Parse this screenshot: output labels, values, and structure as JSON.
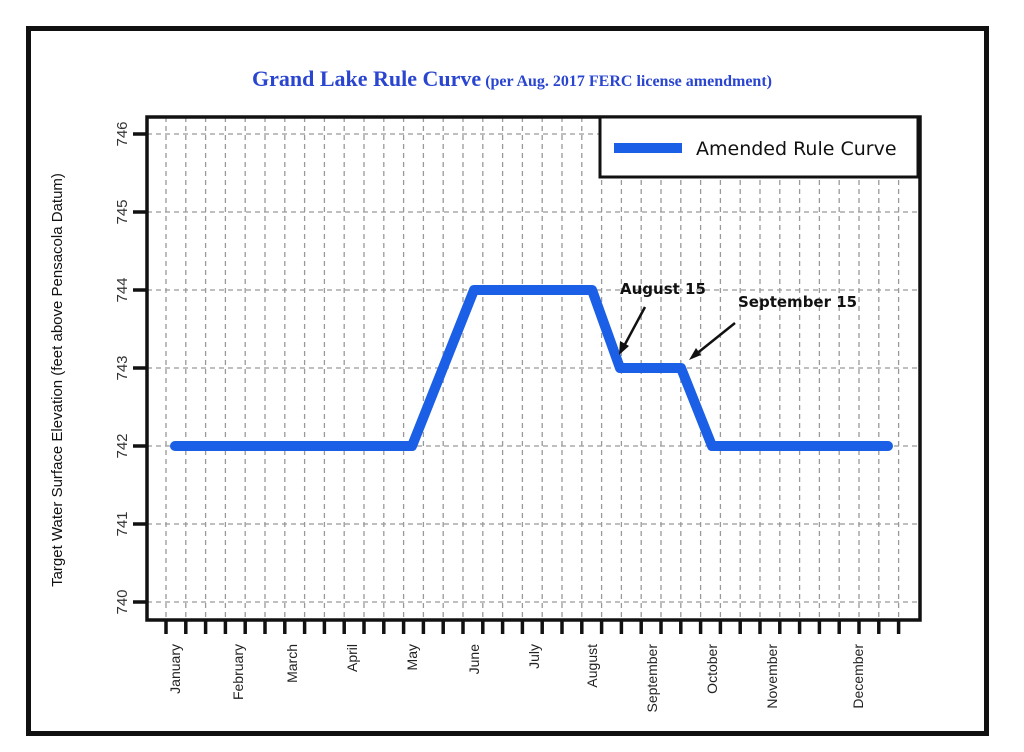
{
  "chart_data": {
    "type": "line",
    "title": "Grand Lake Rule Curve",
    "subtitle": "(per Aug. 2017 FERC license amendment)",
    "xlabel": "",
    "ylabel": "Target Water Surface Elevation (feet above Pensacola Datum)",
    "x_tick_labels": [
      "January",
      "February",
      "March",
      "April",
      "May",
      "June",
      "July",
      "August",
      "September",
      "October",
      "November",
      "December"
    ],
    "y_ticks": [
      740,
      741,
      742,
      743,
      744,
      745,
      746
    ],
    "ylim": [
      740,
      746
    ],
    "grid": true,
    "legend_position": "top-right",
    "series": [
      {
        "name": "Amended Rule Curve",
        "color": "#1a5fe6",
        "points": [
          {
            "x": "January",
            "y": 742
          },
          {
            "x": "May",
            "y": 742
          },
          {
            "x": "June",
            "y": 744
          },
          {
            "x": "August",
            "y": 744
          },
          {
            "x": "August 15",
            "y": 743
          },
          {
            "x": "September 15",
            "y": 743
          },
          {
            "x": "October",
            "y": 742
          },
          {
            "x": "end of December",
            "y": 742
          }
        ]
      }
    ],
    "annotations": [
      {
        "text": "August 15",
        "x": "August 15",
        "y": 743
      },
      {
        "text": "September 15",
        "x": "September 15",
        "y": 743
      }
    ]
  }
}
